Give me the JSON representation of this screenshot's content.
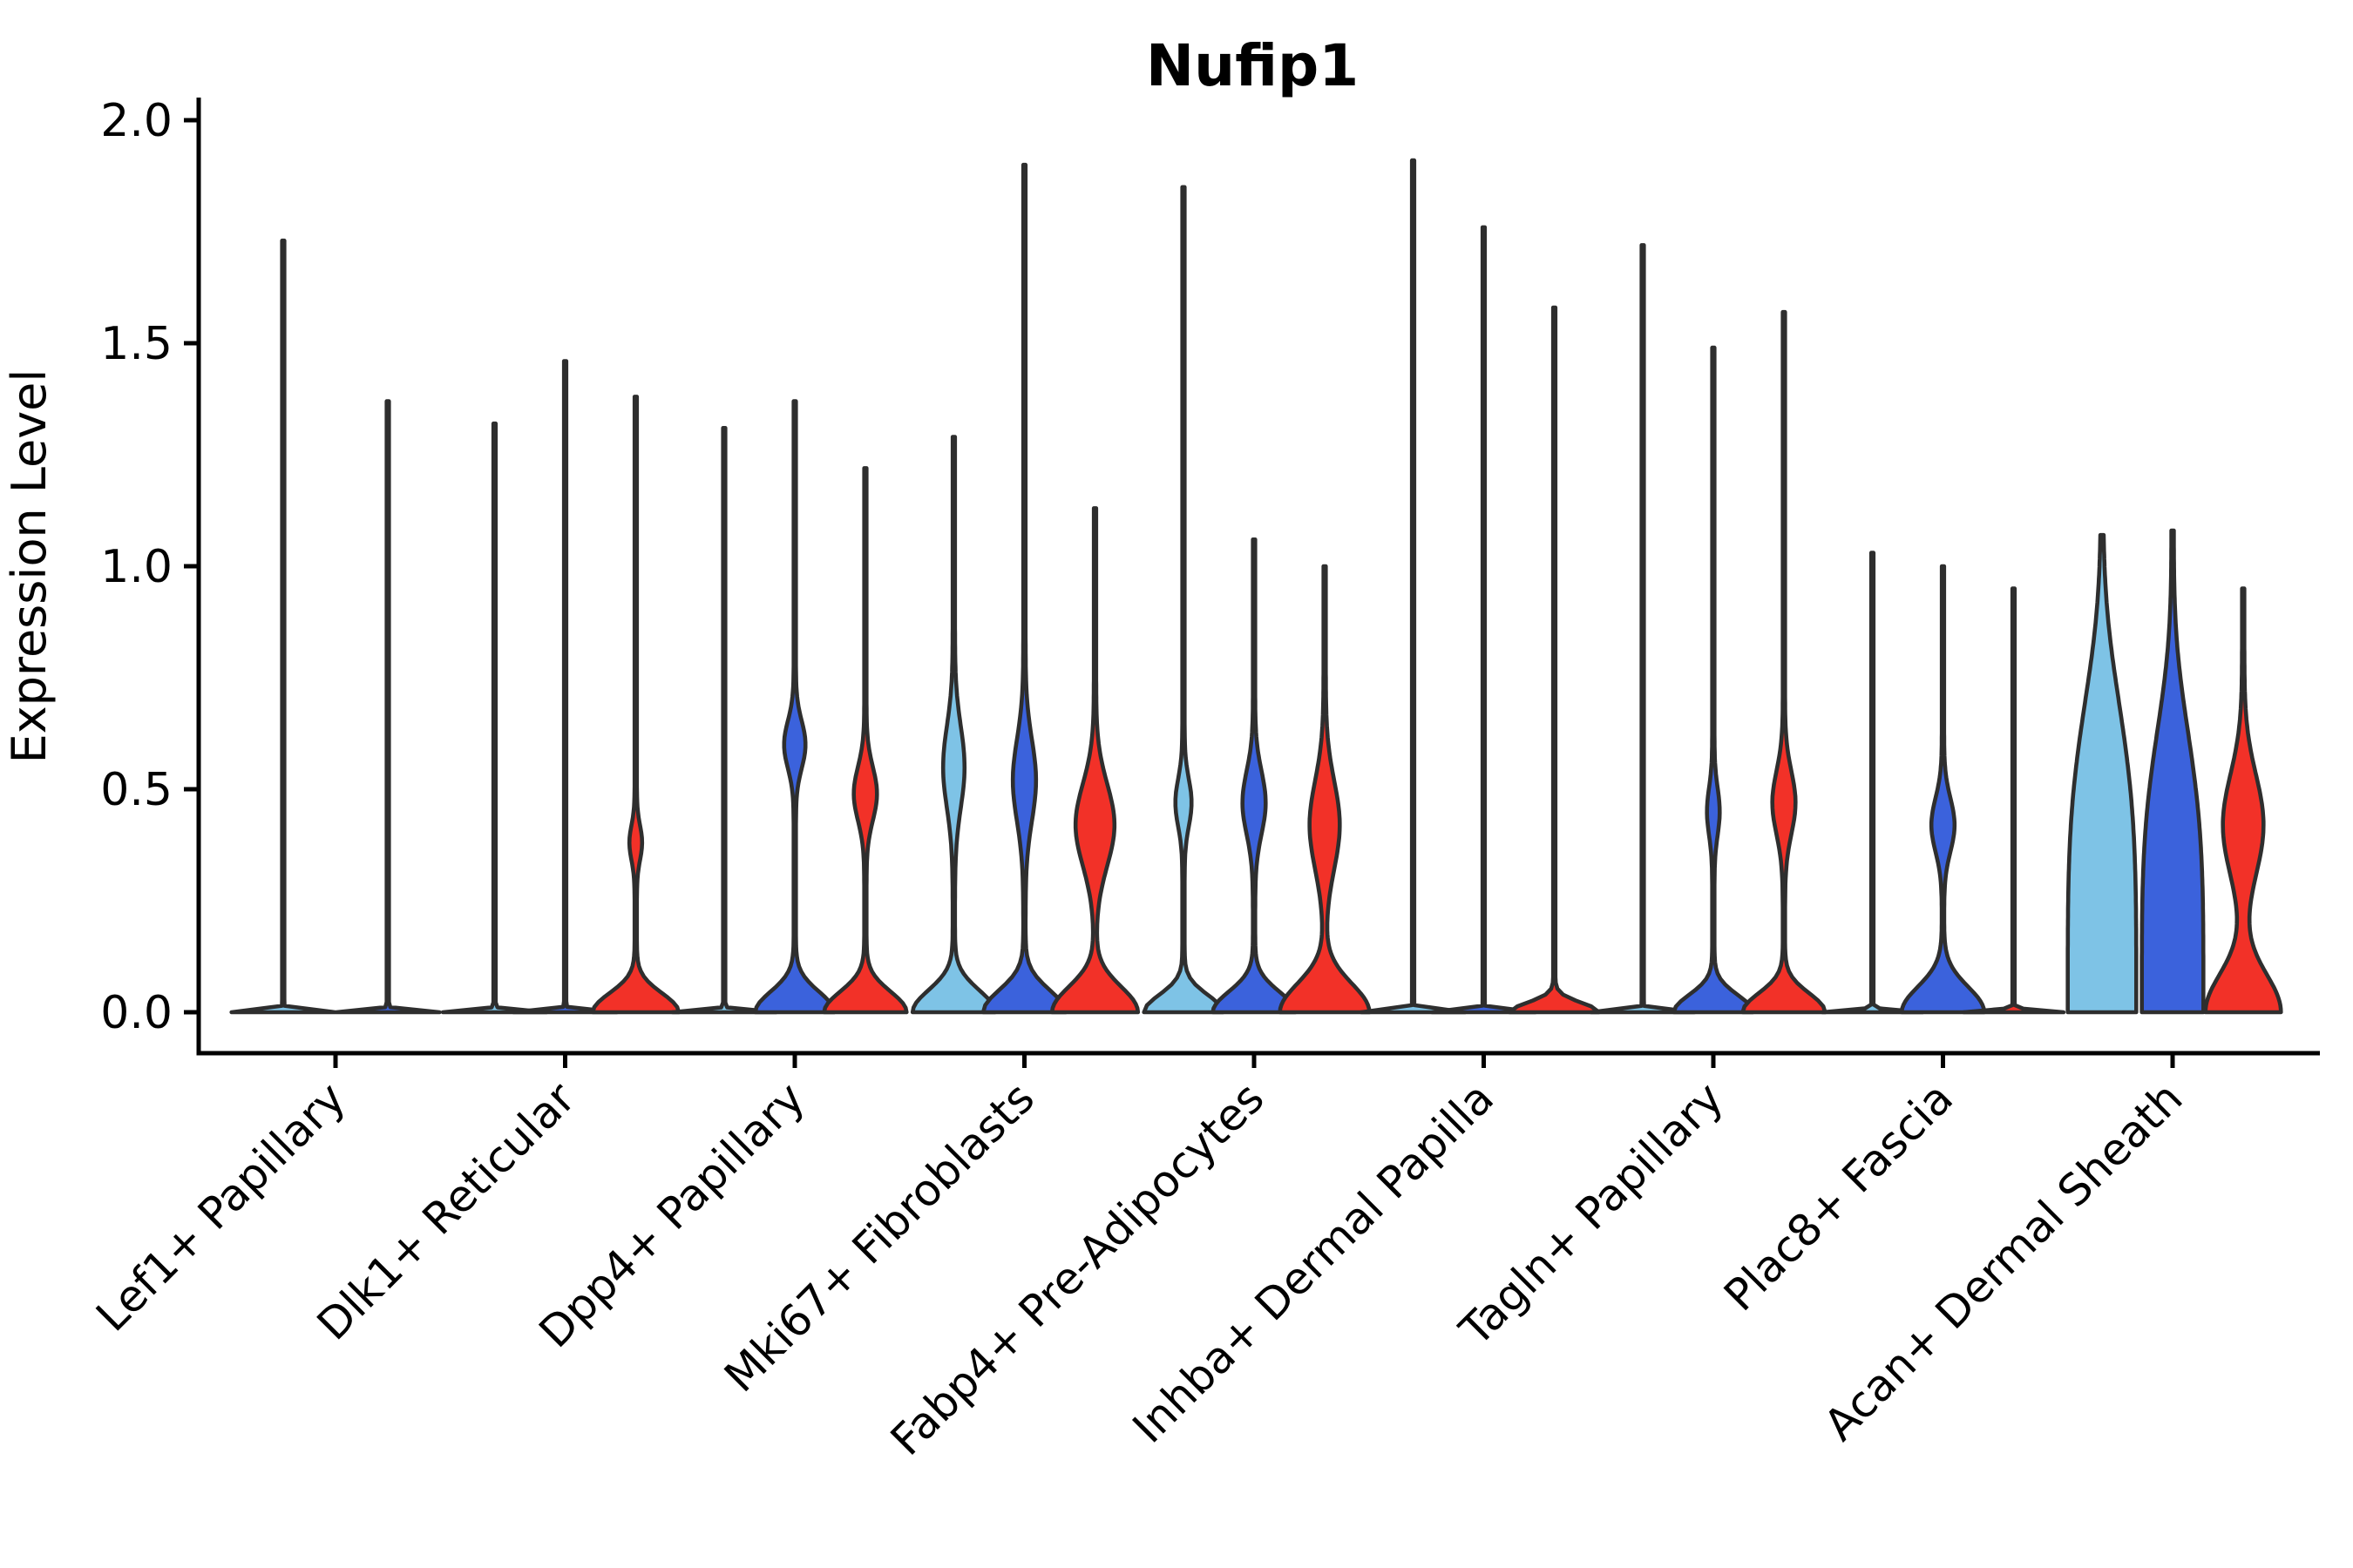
{
  "title": "Nufip1",
  "axes": {
    "ylabel": "Expression Level",
    "yticks": [
      "0.0",
      "0.5",
      "1.0",
      "1.5",
      "2.0"
    ]
  },
  "style": {
    "series_light_blue": "#7EC3E6",
    "series_dark_blue": "#3B62DC",
    "series_red": "#F23128",
    "outline": "#2E2E2E",
    "axis_color": "#000000",
    "background": "#FFFFFF"
  },
  "chart_data": {
    "type": "violin",
    "title": "Nufip1",
    "xlabel": "",
    "ylabel": "Expression Level",
    "ylim": [
      -0.09,
      2.05
    ],
    "ytick_values": [
      0.0,
      0.5,
      1.0,
      1.5,
      2.0
    ],
    "grid": false,
    "legend": "none",
    "categories": [
      "Lef1+ Papillary",
      "Dlk1+ Reticular",
      "Dpp4+ Papillary",
      "Mki67+ Fibroblasts",
      "Fabp4+ Pre-Adipocytes",
      "Inhba+ Dermal Papilla",
      "Tagln+ Papillary",
      "Plac8+ Fascia",
      "Acan+ Dermal Sheath"
    ],
    "series": [
      {
        "name": "light-blue",
        "color": "#7EC3E6"
      },
      {
        "name": "dark-blue",
        "color": "#3B62DC"
      },
      {
        "name": "red",
        "color": "#F23128"
      }
    ],
    "violin_note": "base=[halfwidth_px, sigma_expr_units, power]; bulge=[halfwidth_px, center_expr, sigma_expr]; max = top of distribution spike in expression units",
    "groups": [
      {
        "label": "Lef1+ Papillary",
        "violins": [
          {
            "series": 0,
            "max": 1.73,
            "base": [
              58,
              0.006,
              2
            ],
            "bulge": null
          },
          {
            "series": 1,
            "max": 1.37,
            "base": [
              58,
              0.006,
              2
            ],
            "bulge": null
          }
        ]
      },
      {
        "label": "Dlk1+ Reticular",
        "violins": [
          {
            "series": 0,
            "max": 1.32,
            "base": [
              58,
              0.006,
              2
            ],
            "bulge": null
          },
          {
            "series": 1,
            "max": 1.46,
            "base": [
              58,
              0.006,
              2
            ],
            "bulge": null
          },
          {
            "series": 2,
            "max": 1.38,
            "base": [
              48,
              0.06,
              2
            ],
            "bulge": [
              6,
              0.38,
              0.055
            ]
          }
        ]
      },
      {
        "label": "Dpp4+ Papillary",
        "violins": [
          {
            "series": 0,
            "max": 1.31,
            "base": [
              58,
              0.006,
              2
            ],
            "bulge": null
          },
          {
            "series": 1,
            "max": 1.37,
            "base": [
              44,
              0.065,
              2
            ],
            "bulge": [
              11,
              0.6,
              0.075
            ]
          },
          {
            "series": 2,
            "max": 1.22,
            "base": [
              46,
              0.065,
              2
            ],
            "bulge": [
              12,
              0.49,
              0.085
            ]
          }
        ]
      },
      {
        "label": "Mki67+ Fibroblasts",
        "violins": [
          {
            "series": 0,
            "max": 1.29,
            "base": [
              46,
              0.07,
              2
            ],
            "bulge": [
              11,
              0.55,
              0.13
            ]
          },
          {
            "series": 1,
            "max": 1.9,
            "base": [
              46,
              0.07,
              2
            ],
            "bulge": [
              12,
              0.52,
              0.13
            ]
          },
          {
            "series": 2,
            "max": 1.13,
            "base": [
              48,
              0.08,
              2
            ],
            "bulge": [
              21,
              0.42,
              0.13
            ]
          }
        ]
      },
      {
        "label": "Fabp4+ Pre-Adipocytes",
        "violins": [
          {
            "series": 0,
            "max": 1.85,
            "base": [
              44,
              0.055,
              2
            ],
            "bulge": [
              8,
              0.47,
              0.075
            ]
          },
          {
            "series": 1,
            "max": 1.06,
            "base": [
              46,
              0.065,
              2
            ],
            "bulge": [
              12,
              0.47,
              0.1
            ]
          },
          {
            "series": 2,
            "max": 1.0,
            "base": [
              50,
              0.09,
              2
            ],
            "bulge": [
              16,
              0.42,
              0.14
            ]
          }
        ]
      },
      {
        "label": "Inhba+ Dermal Papilla",
        "violins": [
          {
            "series": 0,
            "max": 1.91,
            "base": [
              58,
              0.006,
              2
            ],
            "bulge": null
          },
          {
            "series": 1,
            "max": 1.76,
            "base": [
              58,
              0.006,
              2
            ],
            "bulge": null
          },
          {
            "series": 2,
            "max": 1.58,
            "base": [
              50,
              0.03,
              2
            ],
            "bulge": null
          }
        ]
      },
      {
        "label": "Tagln+ Papillary",
        "violins": [
          {
            "series": 0,
            "max": 1.72,
            "base": [
              58,
              0.006,
              2
            ],
            "bulge": null
          },
          {
            "series": 1,
            "max": 1.49,
            "base": [
              44,
              0.055,
              2
            ],
            "bulge": [
              6,
              0.45,
              0.075
            ]
          },
          {
            "series": 2,
            "max": 1.57,
            "base": [
              46,
              0.06,
              2
            ],
            "bulge": [
              12,
              0.47,
              0.1
            ]
          }
        ]
      },
      {
        "label": "Plac8+ Fascia",
        "violins": [
          {
            "series": 0,
            "max": 1.03,
            "base": [
              56,
              0.006,
              2
            ],
            "bulge": null
          },
          {
            "series": 1,
            "max": 1.0,
            "base": [
              46,
              0.08,
              2
            ],
            "bulge": [
              12,
              0.42,
              0.085
            ]
          },
          {
            "series": 2,
            "max": 0.95,
            "base": [
              56,
              0.006,
              2
            ],
            "bulge": null
          }
        ]
      },
      {
        "label": "Acan+ Dermal Sheath",
        "violins": [
          {
            "series": 0,
            "max": 1.07,
            "base": [
              38,
              0.75,
              4
            ],
            "bulge": null
          },
          {
            "series": 1,
            "max": 1.08,
            "base": [
              34,
              0.68,
              4
            ],
            "bulge": null
          },
          {
            "series": 2,
            "max": 0.95,
            "base": [
              42,
              0.12,
              2
            ],
            "bulge": [
              22,
              0.42,
              0.16
            ]
          }
        ]
      }
    ]
  }
}
